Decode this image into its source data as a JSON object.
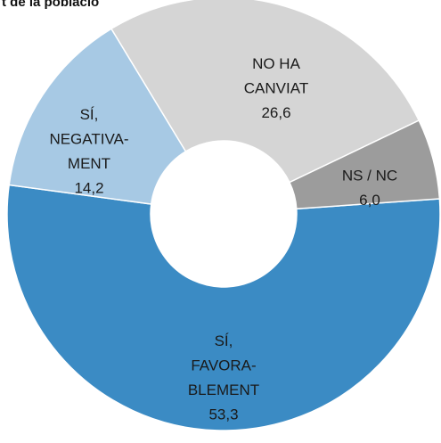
{
  "chart_data": {
    "type": "donut",
    "title": "t de la poblacio",
    "categories": [
      [
        "SÍ,",
        "FAVORA-",
        "BLEMENT"
      ],
      [
        "SÍ,",
        "NEGATIVA-",
        "MENT"
      ],
      [
        "NO HA",
        "CANVIAT"
      ],
      [
        "NS / NC"
      ]
    ],
    "values": [
      53.3,
      14.2,
      26.6,
      6.0
    ],
    "value_labels": [
      "53,3",
      "14,2",
      "26,6",
      "6,0"
    ],
    "colors": [
      "#3b8bc4",
      "#a7c9e4",
      "#d5d5d5",
      "#9c9c9c"
    ]
  }
}
